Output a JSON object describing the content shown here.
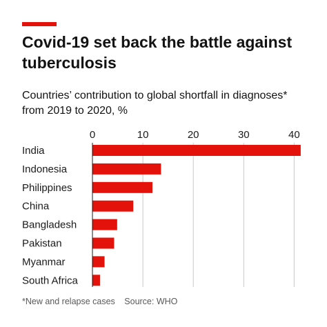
{
  "header": {
    "title": "Covid-19 set back the battle against tuberculosis",
    "subtitle": "Countries’ contribution to global shortfall in diagnoses* from 2019 to 2020, %"
  },
  "footer": {
    "note": "*New and relapse cases",
    "source": "Source: WHO"
  },
  "colors": {
    "accent": "#e3120b",
    "bar": "#e3120b",
    "gridline": "#c8c8c8"
  },
  "chart_data": {
    "type": "bar",
    "orientation": "horizontal",
    "categories": [
      "India",
      "Indonesia",
      "Philippines",
      "China",
      "Bangladesh",
      "Pakistan",
      "Myanmar",
      "South Africa"
    ],
    "values": [
      41.3,
      13.6,
      11.9,
      8.1,
      4.9,
      4.3,
      2.4,
      1.5
    ],
    "xlim": [
      0,
      42
    ],
    "xticks": [
      0,
      10,
      20,
      30,
      40
    ],
    "axis_position": "top",
    "grid": true
  }
}
